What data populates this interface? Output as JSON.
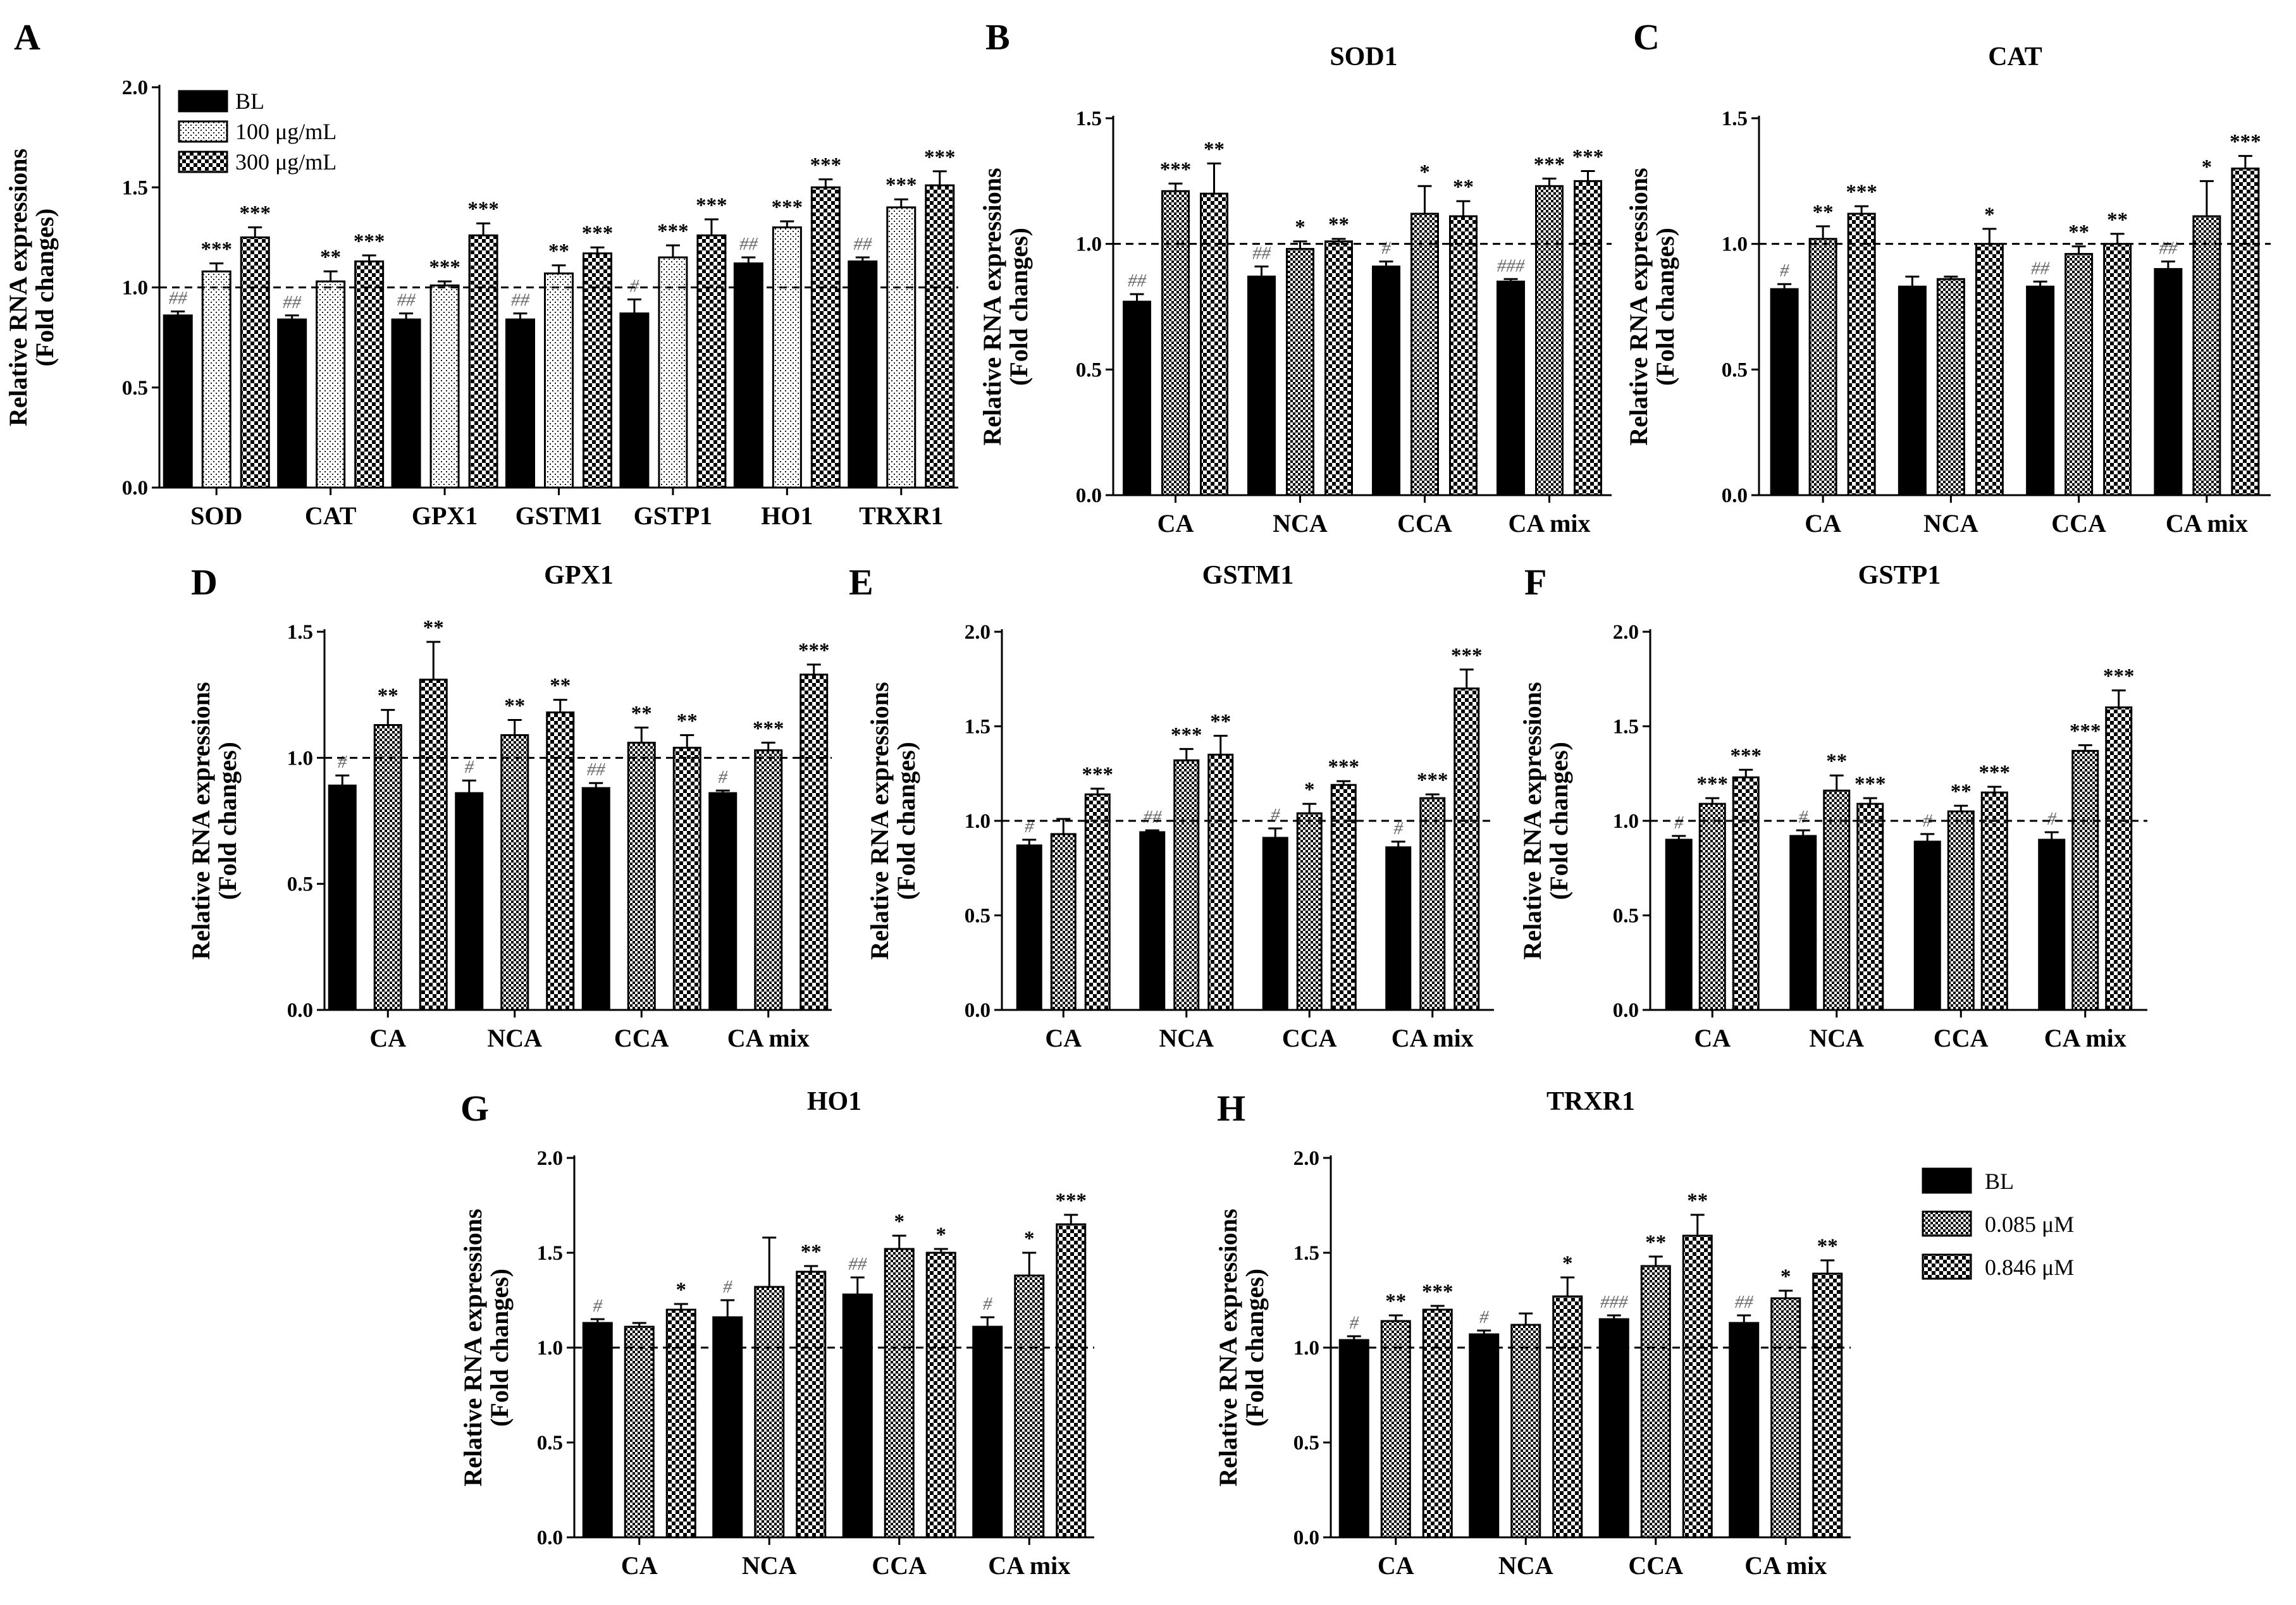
{
  "common": {
    "ylabel_line1": "Relative RNA expressions",
    "ylabel_line2": "(Fold changes)",
    "series_key": [
      "bl",
      "s2",
      "s3"
    ]
  },
  "legend_A": {
    "items": [
      "BL",
      "100 μg/mL",
      "300 μg/mL"
    ]
  },
  "legend_H": {
    "items": [
      "BL",
      "0.085 μM",
      "0.846 μM"
    ]
  },
  "colors": {
    "bar_fill": "#000000",
    "axis": "#000000",
    "hash": "#666666"
  },
  "chart_data": [
    {
      "panel": "A",
      "title": "",
      "type": "bar",
      "categories": [
        "SOD",
        "CAT",
        "GPX1",
        "GSTM1",
        "GSTP1",
        "HO1",
        "TRXR1"
      ],
      "ylim": [
        0,
        2.0
      ],
      "ystep": 0.5,
      "reference_line": 1.0,
      "xlabel": "",
      "ylabel": "Relative RNA expressions (Fold changes)",
      "series": [
        {
          "name": "BL",
          "values": [
            0.86,
            0.84,
            0.84,
            0.84,
            0.87,
            1.12,
            1.13
          ],
          "errors": [
            0.02,
            0.02,
            0.03,
            0.03,
            0.07,
            0.03,
            0.02
          ],
          "labels": [
            "##",
            "##",
            "##",
            "##",
            "#",
            "##",
            "##"
          ]
        },
        {
          "name": "100 μg/mL",
          "values": [
            1.08,
            1.03,
            1.01,
            1.07,
            1.15,
            1.3,
            1.4
          ],
          "errors": [
            0.04,
            0.05,
            0.02,
            0.04,
            0.06,
            0.03,
            0.04
          ],
          "labels": [
            "***",
            "**",
            "***",
            "**",
            "***",
            "***",
            "***"
          ]
        },
        {
          "name": "300 μg/mL",
          "values": [
            1.25,
            1.13,
            1.26,
            1.17,
            1.26,
            1.5,
            1.51
          ],
          "errors": [
            0.05,
            0.03,
            0.06,
            0.03,
            0.08,
            0.04,
            0.07
          ],
          "labels": [
            "***",
            "***",
            "***",
            "***",
            "***",
            "***",
            "***"
          ]
        }
      ]
    },
    {
      "panel": "B",
      "title": "SOD1",
      "type": "bar",
      "categories": [
        "CA",
        "NCA",
        "CCA",
        "CA mix"
      ],
      "ylim": [
        0,
        1.5
      ],
      "ystep": 0.5,
      "reference_line": 1.0,
      "xlabel": "",
      "ylabel": "Relative RNA expressions (Fold changes)",
      "series": [
        {
          "name": "BL",
          "values": [
            0.77,
            0.87,
            0.91,
            0.85
          ],
          "errors": [
            0.03,
            0.04,
            0.02,
            0.01
          ],
          "labels": [
            "##",
            "##",
            "#",
            "###"
          ]
        },
        {
          "name": "0.085 μM",
          "values": [
            1.21,
            0.98,
            1.12,
            1.23
          ],
          "errors": [
            0.03,
            0.03,
            0.11,
            0.03
          ],
          "labels": [
            "***",
            "*",
            "*",
            "***"
          ]
        },
        {
          "name": "0.846 μM",
          "values": [
            1.2,
            1.01,
            1.11,
            1.25
          ],
          "errors": [
            0.12,
            0.01,
            0.06,
            0.04
          ],
          "labels": [
            "**",
            "**",
            "**",
            "***"
          ]
        }
      ]
    },
    {
      "panel": "C",
      "title": "CAT",
      "type": "bar",
      "categories": [
        "CA",
        "NCA",
        "CCA",
        "CA mix"
      ],
      "ylim": [
        0,
        1.5
      ],
      "ystep": 0.5,
      "reference_line": 1.0,
      "xlabel": "",
      "ylabel": "Relative RNA expressions (Fold changes)",
      "series": [
        {
          "name": "BL",
          "values": [
            0.82,
            0.83,
            0.83,
            0.9
          ],
          "errors": [
            0.02,
            0.04,
            0.02,
            0.03
          ],
          "labels": [
            "#",
            "",
            "##",
            "##"
          ]
        },
        {
          "name": "0.085 μM",
          "values": [
            1.02,
            0.86,
            0.96,
            1.11
          ],
          "errors": [
            0.05,
            0.01,
            0.03,
            0.14
          ],
          "labels": [
            "**",
            "",
            "**",
            "*"
          ]
        },
        {
          "name": "0.846 μM",
          "values": [
            1.12,
            1.0,
            1.0,
            1.3
          ],
          "errors": [
            0.03,
            0.06,
            0.04,
            0.05
          ],
          "labels": [
            "***",
            "*",
            "**",
            "***"
          ]
        }
      ]
    },
    {
      "panel": "D",
      "title": "GPX1",
      "type": "bar",
      "categories": [
        "CA",
        "NCA",
        "CCA",
        "CA mix"
      ],
      "ylim": [
        0,
        1.5
      ],
      "ystep": 0.5,
      "reference_line": 1.0,
      "xlabel": "",
      "ylabel": "Relative RNA expressions (Fold changes)",
      "series": [
        {
          "name": "BL",
          "values": [
            0.89,
            0.86,
            0.88,
            0.86
          ],
          "errors": [
            0.04,
            0.05,
            0.02,
            0.01
          ],
          "labels": [
            "#",
            "#",
            "##",
            "#"
          ]
        },
        {
          "name": "0.085 μM",
          "values": [
            1.13,
            1.09,
            1.06,
            1.03
          ],
          "errors": [
            0.06,
            0.06,
            0.06,
            0.03
          ],
          "labels": [
            "**",
            "**",
            "**",
            "***"
          ]
        },
        {
          "name": "0.846 μM",
          "values": [
            1.31,
            1.18,
            1.04,
            1.33
          ],
          "errors": [
            0.15,
            0.05,
            0.05,
            0.04
          ],
          "labels": [
            "**",
            "**",
            "**",
            "***"
          ]
        }
      ]
    },
    {
      "panel": "E",
      "title": "GSTM1",
      "type": "bar",
      "categories": [
        "CA",
        "NCA",
        "CCA",
        "CA mix"
      ],
      "ylim": [
        0,
        2.0
      ],
      "ystep": 0.5,
      "reference_line": 1.0,
      "xlabel": "",
      "ylabel": "Relative RNA expressions (Fold changes)",
      "series": [
        {
          "name": "BL",
          "values": [
            0.87,
            0.94,
            0.91,
            0.86
          ],
          "errors": [
            0.03,
            0.01,
            0.05,
            0.03
          ],
          "labels": [
            "#",
            "##",
            "#",
            "#"
          ]
        },
        {
          "name": "0.085 μM",
          "values": [
            0.93,
            1.32,
            1.04,
            1.12
          ],
          "errors": [
            0.08,
            0.06,
            0.05,
            0.02
          ],
          "labels": [
            "",
            "***",
            "*",
            "***"
          ]
        },
        {
          "name": "0.846 μM",
          "values": [
            1.14,
            1.35,
            1.19,
            1.7
          ],
          "errors": [
            0.03,
            0.1,
            0.02,
            0.1
          ],
          "labels": [
            "***",
            "**",
            "***",
            "***"
          ]
        }
      ]
    },
    {
      "panel": "F",
      "title": "GSTP1",
      "type": "bar",
      "categories": [
        "CA",
        "NCA",
        "CCA",
        "CA mix"
      ],
      "ylim": [
        0,
        2.0
      ],
      "ystep": 0.5,
      "reference_line": 1.0,
      "xlabel": "",
      "ylabel": "Relative RNA expressions (Fold changes)",
      "series": [
        {
          "name": "BL",
          "values": [
            0.9,
            0.92,
            0.89,
            0.9
          ],
          "errors": [
            0.02,
            0.03,
            0.04,
            0.04
          ],
          "labels": [
            "#",
            "#",
            "#",
            "#"
          ]
        },
        {
          "name": "0.085 μM",
          "values": [
            1.09,
            1.16,
            1.05,
            1.37
          ],
          "errors": [
            0.03,
            0.08,
            0.03,
            0.03
          ],
          "labels": [
            "***",
            "**",
            "**",
            "***"
          ]
        },
        {
          "name": "0.846 μM",
          "values": [
            1.23,
            1.09,
            1.15,
            1.6
          ],
          "errors": [
            0.04,
            0.03,
            0.03,
            0.09
          ],
          "labels": [
            "***",
            "***",
            "***",
            "***"
          ]
        }
      ]
    },
    {
      "panel": "G",
      "title": "HO1",
      "type": "bar",
      "categories": [
        "CA",
        "NCA",
        "CCA",
        "CA mix"
      ],
      "ylim": [
        0,
        2.0
      ],
      "ystep": 0.5,
      "reference_line": 1.0,
      "xlabel": "",
      "ylabel": "Relative RNA expressions (Fold changes)",
      "series": [
        {
          "name": "BL",
          "values": [
            1.13,
            1.16,
            1.28,
            1.11
          ],
          "errors": [
            0.02,
            0.09,
            0.09,
            0.05
          ],
          "labels": [
            "#",
            "#",
            "##",
            "#"
          ]
        },
        {
          "name": "0.085 μM",
          "values": [
            1.11,
            1.32,
            1.52,
            1.38
          ],
          "errors": [
            0.02,
            0.26,
            0.07,
            0.12
          ],
          "labels": [
            "",
            "",
            "*",
            "*"
          ]
        },
        {
          "name": "0.846 μM",
          "values": [
            1.2,
            1.4,
            1.5,
            1.65
          ],
          "errors": [
            0.03,
            0.03,
            0.02,
            0.05
          ],
          "labels": [
            "*",
            "**",
            "*",
            "***"
          ]
        }
      ]
    },
    {
      "panel": "H",
      "title": "TRXR1",
      "type": "bar",
      "categories": [
        "CA",
        "NCA",
        "CCA",
        "CA mix"
      ],
      "ylim": [
        0,
        2.0
      ],
      "ystep": 0.5,
      "reference_line": 1.0,
      "xlabel": "",
      "ylabel": "Relative RNA expressions (Fold changes)",
      "series": [
        {
          "name": "BL",
          "values": [
            1.04,
            1.07,
            1.15,
            1.13
          ],
          "errors": [
            0.02,
            0.02,
            0.02,
            0.04
          ],
          "labels": [
            "#",
            "#",
            "###",
            "##"
          ]
        },
        {
          "name": "0.085 μM",
          "values": [
            1.14,
            1.12,
            1.43,
            1.26
          ],
          "errors": [
            0.03,
            0.06,
            0.05,
            0.04
          ],
          "labels": [
            "**",
            "",
            "**",
            "*"
          ]
        },
        {
          "name": "0.846 μM",
          "values": [
            1.2,
            1.27,
            1.59,
            1.39
          ],
          "errors": [
            0.02,
            0.1,
            0.11,
            0.07
          ],
          "labels": [
            "***",
            "*",
            "**",
            "**"
          ]
        }
      ]
    }
  ]
}
